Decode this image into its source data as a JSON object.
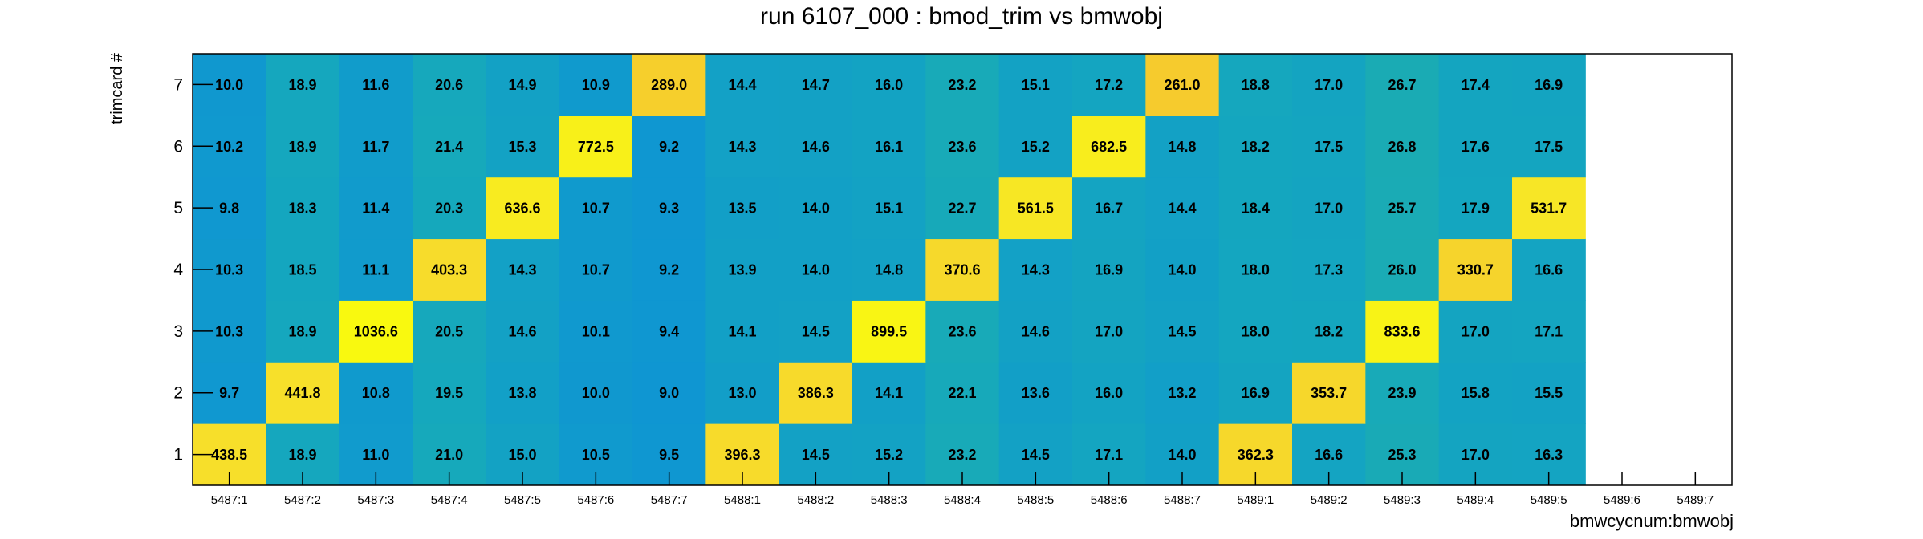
{
  "chart_data": {
    "type": "heatmap",
    "title": "run 6107_000 : bmod_trim vs bmwobj",
    "xlabel": "bmwcycnum:bmwobj",
    "ylabel": "trimcard #",
    "x_categories": [
      "5487:1",
      "5487:2",
      "5487:3",
      "5487:4",
      "5487:5",
      "5487:6",
      "5487:7",
      "5488:1",
      "5488:2",
      "5488:3",
      "5488:4",
      "5488:5",
      "5488:6",
      "5488:7",
      "5489:1",
      "5489:2",
      "5489:3",
      "5489:4",
      "5489:5",
      "5489:6",
      "5489:7"
    ],
    "y_categories": [
      "1",
      "2",
      "3",
      "4",
      "5",
      "6",
      "7"
    ],
    "values": [
      [
        438.5,
        18.9,
        11.0,
        21.0,
        15.0,
        10.5,
        9.5,
        396.3,
        14.5,
        15.2,
        23.2,
        14.5,
        17.1,
        14.0,
        362.3,
        16.6,
        25.3,
        17.0,
        16.3,
        null,
        null
      ],
      [
        9.7,
        441.8,
        10.8,
        19.5,
        13.8,
        10.0,
        9.0,
        13.0,
        386.3,
        14.1,
        22.1,
        13.6,
        16.0,
        13.2,
        16.9,
        353.7,
        23.9,
        15.8,
        15.5,
        null,
        null
      ],
      [
        10.3,
        18.9,
        1036.6,
        20.5,
        14.6,
        10.1,
        9.4,
        14.1,
        14.5,
        899.5,
        23.6,
        14.6,
        17.0,
        14.5,
        18.0,
        18.2,
        833.6,
        17.0,
        17.1,
        null,
        null
      ],
      [
        10.3,
        18.5,
        11.1,
        403.3,
        14.3,
        10.7,
        9.2,
        13.9,
        14.0,
        14.8,
        370.6,
        14.3,
        16.9,
        14.0,
        18.0,
        17.3,
        26.0,
        330.7,
        16.6,
        null,
        null
      ],
      [
        9.8,
        18.3,
        11.4,
        20.3,
        636.6,
        10.7,
        9.3,
        13.5,
        14.0,
        15.1,
        22.7,
        561.5,
        16.7,
        14.4,
        18.4,
        17.0,
        25.7,
        17.9,
        531.7,
        null,
        null
      ],
      [
        10.2,
        18.9,
        11.7,
        21.4,
        15.3,
        772.5,
        9.2,
        14.3,
        14.6,
        16.1,
        23.6,
        15.2,
        682.5,
        14.8,
        18.2,
        17.5,
        26.8,
        17.6,
        17.5,
        null,
        null
      ],
      [
        10.0,
        18.9,
        11.6,
        20.6,
        14.9,
        10.9,
        289.0,
        14.4,
        14.7,
        16.0,
        23.2,
        15.1,
        17.2,
        261.0,
        18.8,
        17.0,
        26.7,
        17.4,
        16.9,
        null,
        null
      ]
    ],
    "value_format": "0.0",
    "log_color_scale": true,
    "palette": [
      "#0f96d2",
      "#15a8bd",
      "#23b0a6",
      "#2fb396",
      "#f5c32e",
      "#f7e22a",
      "#f9f90f"
    ],
    "empty_color": "#ffffff",
    "grid": false,
    "legend": "none"
  }
}
